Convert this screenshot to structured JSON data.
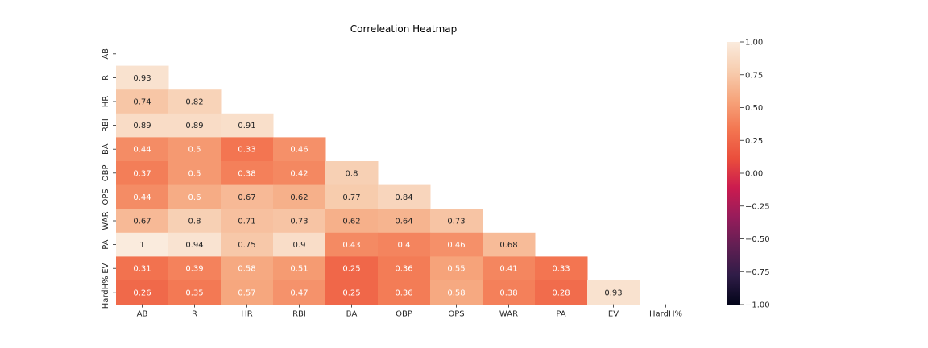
{
  "chart_data": {
    "type": "heatmap",
    "title": "Correleation Heatmap",
    "row_labels": [
      "AB",
      "R",
      "HR",
      "RBI",
      "BA",
      "OBP",
      "OPS",
      "WAR",
      "PA",
      "EV",
      "HardH%"
    ],
    "col_labels": [
      "AB",
      "R",
      "HR",
      "RBI",
      "BA",
      "OBP",
      "OPS",
      "WAR",
      "PA",
      "EV",
      "HardH%"
    ],
    "mask": "upper triangle including diagonal",
    "values": [
      [],
      [
        "0.93"
      ],
      [
        "0.74",
        "0.82"
      ],
      [
        "0.89",
        "0.89",
        "0.91"
      ],
      [
        "0.44",
        "0.5",
        "0.33",
        "0.46"
      ],
      [
        "0.37",
        "0.5",
        "0.38",
        "0.42",
        "0.8"
      ],
      [
        "0.44",
        "0.6",
        "0.67",
        "0.62",
        "0.77",
        "0.84"
      ],
      [
        "0.67",
        "0.8",
        "0.71",
        "0.73",
        "0.62",
        "0.64",
        "0.73"
      ],
      [
        "1",
        "0.94",
        "0.75",
        "0.9",
        "0.43",
        "0.4",
        "0.46",
        "0.68"
      ],
      [
        "0.31",
        "0.39",
        "0.58",
        "0.51",
        "0.25",
        "0.36",
        "0.55",
        "0.41",
        "0.33"
      ],
      [
        "0.26",
        "0.35",
        "0.57",
        "0.47",
        "0.25",
        "0.36",
        "0.58",
        "0.38",
        "0.28",
        "0.93"
      ]
    ],
    "vmin": -1.0,
    "vmax": 1.0,
    "colorbar_ticks": [
      "1.00",
      "0.75",
      "0.50",
      "0.25",
      "0.00",
      "−0.25",
      "−0.50",
      "−0.75",
      "−1.00"
    ],
    "colormap": "rocket",
    "colormap_stops": [
      "#03051a",
      "#2f1c47",
      "#611f53",
      "#971c5b",
      "#cb1b4f",
      "#ea4e3c",
      "#f37651",
      "#f6a47b",
      "#f7cdaf",
      "#faebdd"
    ]
  }
}
